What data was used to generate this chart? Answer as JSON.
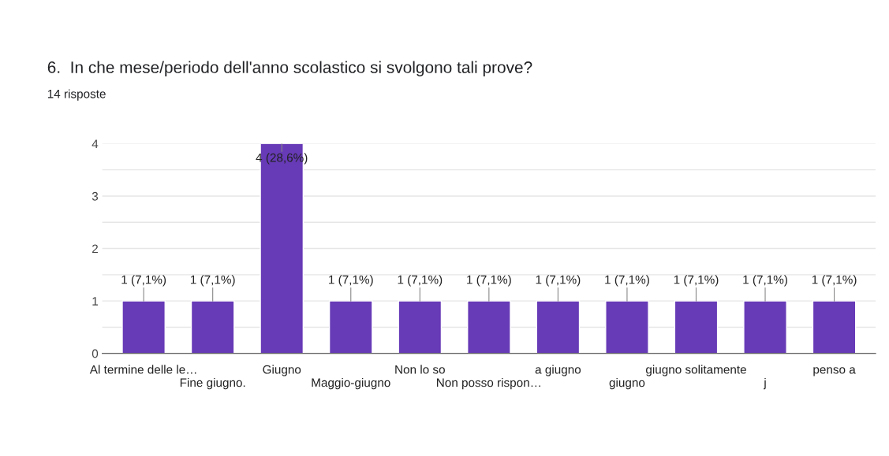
{
  "chart_data": {
    "type": "bar",
    "title": "6.  In che mese/periodo dell'anno scolastico si svolgono tali prove?",
    "subtitle": "14 risposte",
    "categories": [
      "Al termine delle le…",
      "Fine giugno.",
      "Giugno",
      "Maggio-giugno",
      "Non lo so",
      "Non posso rispon…",
      "a giugno",
      "giugno",
      "giugno solitamente",
      "j",
      "penso a"
    ],
    "values": [
      1,
      1,
      4,
      1,
      1,
      1,
      1,
      1,
      1,
      1,
      1
    ],
    "value_labels": [
      "1 (7,1%)",
      "1 (7,1%)",
      "4 (28,6%)",
      "1 (7,1%)",
      "1 (7,1%)",
      "1 (7,1%)",
      "1 (7,1%)",
      "1 (7,1%)",
      "1 (7,1%)",
      "1 (7,1%)",
      "1 (7,1%)"
    ],
    "color": "#673ab7",
    "ylim": [
      0,
      4
    ],
    "yticks": [
      0,
      {
        "value": 0.5,
        "label": null
      },
      1,
      {
        "value": 1.5,
        "label": null
      },
      2,
      {
        "value": 2.5,
        "label": null
      },
      3,
      {
        "value": 3.5,
        "label": null
      },
      4
    ],
    "grid": "y"
  }
}
